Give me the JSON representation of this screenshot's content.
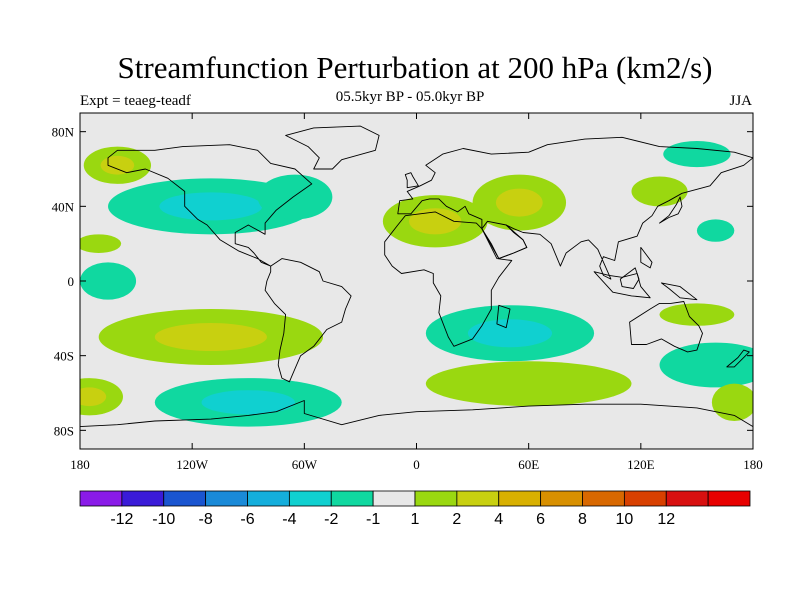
{
  "header": {
    "title": "Streamfunction Perturbation at 200 hPa (km2/s)",
    "subtitle": "05.5kyr BP - 05.0kyr BP",
    "left_label": "Expt = teaeg-teadf",
    "right_label": "JJA"
  },
  "map": {
    "lon_range": [
      -180,
      180
    ],
    "lat_range": [
      -90,
      90
    ],
    "lat_ticks": [
      {
        "lat": 80,
        "label": "80N"
      },
      {
        "lat": 40,
        "label": "40N"
      },
      {
        "lat": 0,
        "label": "0"
      },
      {
        "lat": -40,
        "label": "40S"
      },
      {
        "lat": -80,
        "label": "80S"
      }
    ],
    "lon_ticks": [
      {
        "lon": -180,
        "label": "180"
      },
      {
        "lon": -120,
        "label": "120W"
      },
      {
        "lon": -60,
        "label": "60W"
      },
      {
        "lon": 0,
        "label": "0"
      },
      {
        "lon": 60,
        "label": "60E"
      },
      {
        "lon": 120,
        "label": "120E"
      },
      {
        "lon": 180,
        "label": "180"
      }
    ],
    "background_color": "#e8e8e8",
    "coastline_color": "#000000"
  },
  "colorbar": {
    "colors": [
      "#8a1be8",
      "#3a1bd8",
      "#1a55d0",
      "#1a8ad8",
      "#14aedc",
      "#10d0d0",
      "#10d8a0",
      "#e8e8e8",
      "#9ad810",
      "#c8d010",
      "#d8b000",
      "#d89000",
      "#d86800",
      "#d84000",
      "#d81010",
      "#e80000"
    ],
    "labels": [
      "-12",
      "-10",
      "-8",
      "-6",
      "-4",
      "-2",
      "-1",
      "1",
      "2",
      "4",
      "6",
      "8",
      "10",
      "12"
    ]
  },
  "fields": [
    {
      "name": "n-pacific-pos",
      "lon": -160,
      "lat": 62,
      "rx": 18,
      "ry": 10,
      "levels": [
        {
          "v": 1
        },
        {
          "v": 2
        }
      ]
    },
    {
      "name": "n-america-neg",
      "lon": -110,
      "lat": 40,
      "rx": 55,
      "ry": 15,
      "levels": [
        {
          "v": -1
        },
        {
          "v": -2
        }
      ]
    },
    {
      "name": "n-atlantic-neg",
      "lon": -65,
      "lat": 45,
      "rx": 20,
      "ry": 12,
      "levels": [
        {
          "v": -1
        }
      ]
    },
    {
      "name": "hawaii-pos",
      "lon": -170,
      "lat": 20,
      "rx": 12,
      "ry": 5,
      "levels": [
        {
          "v": 1
        }
      ]
    },
    {
      "name": "pacific-eq-neg",
      "lon": -165,
      "lat": 0,
      "rx": 15,
      "ry": 10,
      "levels": [
        {
          "v": -1
        }
      ]
    },
    {
      "name": "mediterranean-pos",
      "lon": 10,
      "lat": 32,
      "rx": 28,
      "ry": 14,
      "levels": [
        {
          "v": 1
        },
        {
          "v": 2
        }
      ]
    },
    {
      "name": "caspian-pos",
      "lon": 55,
      "lat": 42,
      "rx": 25,
      "ry": 15,
      "levels": [
        {
          "v": 1
        },
        {
          "v": 2
        }
      ]
    },
    {
      "name": "siberia-pos",
      "lon": 130,
      "lat": 48,
      "rx": 15,
      "ry": 8,
      "levels": [
        {
          "v": 1
        }
      ]
    },
    {
      "name": "arctic-neg",
      "lon": 150,
      "lat": 68,
      "rx": 18,
      "ry": 7,
      "levels": [
        {
          "v": -1
        }
      ]
    },
    {
      "name": "n-pacific-neg",
      "lon": 160,
      "lat": 27,
      "rx": 10,
      "ry": 6,
      "levels": [
        {
          "v": -1
        }
      ]
    },
    {
      "name": "s-pacific-pos",
      "lon": -110,
      "lat": -30,
      "rx": 60,
      "ry": 15,
      "levels": [
        {
          "v": 1
        },
        {
          "v": 2
        }
      ]
    },
    {
      "name": "s-indian-neg",
      "lon": 50,
      "lat": -28,
      "rx": 45,
      "ry": 15,
      "levels": [
        {
          "v": -1
        },
        {
          "v": -2
        }
      ]
    },
    {
      "name": "australia-pos",
      "lon": 150,
      "lat": -18,
      "rx": 20,
      "ry": 6,
      "levels": [
        {
          "v": 1
        }
      ]
    },
    {
      "name": "se-australia-neg",
      "lon": 160,
      "lat": -45,
      "rx": 30,
      "ry": 12,
      "levels": [
        {
          "v": -1
        }
      ]
    },
    {
      "name": "southern-ocean-pos",
      "lon": 60,
      "lat": -55,
      "rx": 55,
      "ry": 12,
      "levels": [
        {
          "v": 1
        }
      ]
    },
    {
      "name": "antarctic-neg",
      "lon": -90,
      "lat": -65,
      "rx": 50,
      "ry": 13,
      "levels": [
        {
          "v": -1
        },
        {
          "v": -2
        }
      ]
    },
    {
      "name": "s-pacific-far-pos",
      "lon": -175,
      "lat": -62,
      "rx": 18,
      "ry": 10,
      "levels": [
        {
          "v": 1
        },
        {
          "v": 2
        }
      ]
    },
    {
      "name": "s-pacific-east-pos",
      "lon": 170,
      "lat": -65,
      "rx": 12,
      "ry": 10,
      "levels": [
        {
          "v": 1
        }
      ]
    }
  ]
}
